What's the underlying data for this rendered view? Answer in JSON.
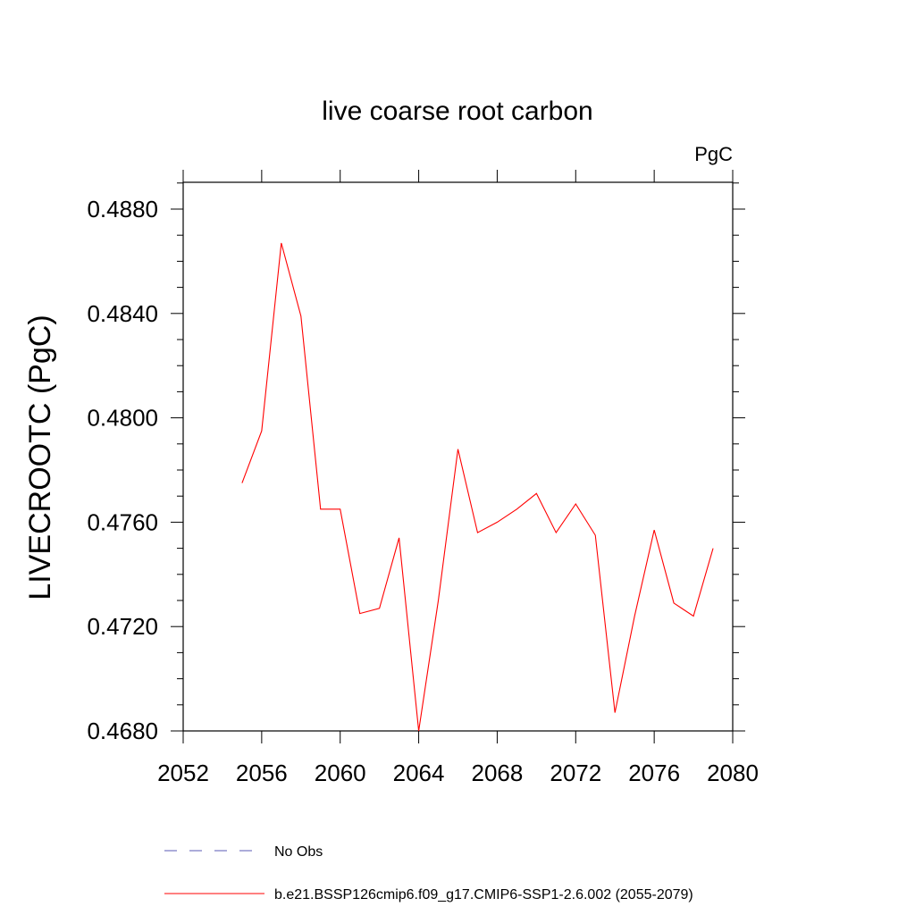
{
  "chart_data": {
    "type": "line",
    "title": "live coarse root carbon",
    "units_label": "PgC",
    "ylabel": "LIVECROOTC  (PgC)",
    "xlabel": "",
    "xlim": [
      2052,
      2080
    ],
    "ylim": [
      0.468,
      0.489
    ],
    "x_ticks": [
      2052,
      2056,
      2060,
      2064,
      2068,
      2072,
      2076,
      2080
    ],
    "x_tick_labels": [
      "2052",
      "2056",
      "2060",
      "2064",
      "2068",
      "2072",
      "2076",
      "2080"
    ],
    "y_ticks": [
      0.468,
      0.472,
      0.476,
      0.48,
      0.484,
      0.488
    ],
    "y_tick_labels": [
      "0.4680",
      "0.4720",
      "0.4760",
      "0.4800",
      "0.4840",
      "0.4880"
    ],
    "grid": false,
    "series": [
      {
        "name": "b.e21.BSSP126cmip6.f09_g17.CMIP6-SSP1-2.6.002 (2055-2079)",
        "color": "#ff0000",
        "style": "solid",
        "x": [
          2055,
          2056,
          2057,
          2058,
          2059,
          2060,
          2061,
          2062,
          2063,
          2064,
          2065,
          2066,
          2067,
          2068,
          2069,
          2070,
          2071,
          2072,
          2073,
          2074,
          2075,
          2076,
          2077,
          2078,
          2079
        ],
        "y": [
          0.4775,
          0.4795,
          0.4867,
          0.4839,
          0.4765,
          0.4765,
          0.4725,
          0.4727,
          0.4754,
          0.468,
          0.473,
          0.4788,
          0.4756,
          0.476,
          0.4765,
          0.4771,
          0.4756,
          0.4767,
          0.4755,
          0.4687,
          0.4724,
          0.4757,
          0.4729,
          0.4724,
          0.475
        ]
      }
    ],
    "legend": [
      {
        "label": "No Obs",
        "color": "#5a5ab4",
        "style": "dashed"
      },
      {
        "label": "b.e21.BSSP126cmip6.f09_g17.CMIP6-SSP1-2.6.002 (2055-2079)",
        "color": "#ff0000",
        "style": "solid"
      }
    ],
    "legend_position": "bottom"
  }
}
